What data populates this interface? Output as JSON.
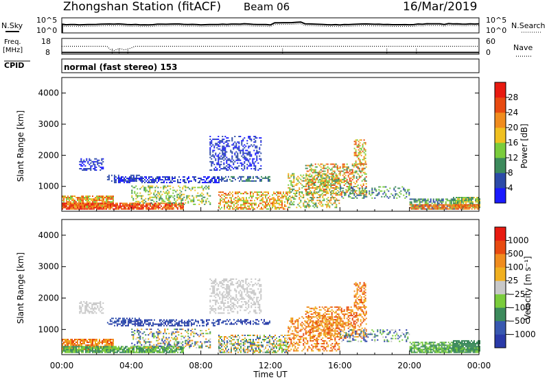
{
  "header": {
    "station": "Zhongshan Station (fitACF)",
    "beam": "Beam 06",
    "date": "16/Mar/2019"
  },
  "noise_panel": {
    "left_label": "N.Sky",
    "right_label": "N.Search",
    "left_ticks": [
      "10^5",
      "10^0"
    ],
    "right_ticks": [
      "10^5",
      "10^0"
    ]
  },
  "freq_panel": {
    "left_label_line1": "Freq.",
    "left_label_line2": "[MHz]",
    "right_label": "Nave",
    "left_ticks": [
      "18",
      "8"
    ],
    "right_ticks": [
      "60",
      "0"
    ]
  },
  "cpid": {
    "label": "CPID",
    "text": "normal (fast stereo) 153"
  },
  "colors": {
    "power": [
      "#1a1aff",
      "#2c4aa8",
      "#3c8a5c",
      "#7acc3c",
      "#f0c020",
      "#f08c1e",
      "#e84a10",
      "#e81a10"
    ],
    "velocity": [
      "#2a3aa8",
      "#3858b0",
      "#3c8a5c",
      "#7acc3c",
      "#c8c8c8",
      "#f0b020",
      "#f08c1e",
      "#e84a10",
      "#e81a10"
    ]
  },
  "chart_data": [
    {
      "type": "heatmap",
      "name": "power",
      "ylabel": "Slant Range [km]",
      "yticks": [
        "4000",
        "3000",
        "2000",
        "1000"
      ],
      "ylim": [
        200,
        4500
      ],
      "xlim": [
        "00:00",
        "24:00"
      ],
      "colorbar_label": "Power [dB]",
      "colorbar_ticks": [
        "28",
        "24",
        "20",
        "16",
        "12",
        "8",
        "4"
      ],
      "colorbar_range": [
        0,
        32
      ]
    },
    {
      "type": "heatmap",
      "name": "velocity",
      "ylabel": "Slant Range [km]",
      "yticks": [
        "4000",
        "3000",
        "2000",
        "1000"
      ],
      "ylim": [
        200,
        4500
      ],
      "xlim": [
        "00:00",
        "24:00"
      ],
      "xticks": [
        "00:00",
        "04:00",
        "08:00",
        "12:00",
        "16:00",
        "20:00",
        "00:00"
      ],
      "xlabel": "Time UT",
      "colorbar_label": "Velocity [m s⁻¹]",
      "colorbar_ticks": [
        "1000",
        "500",
        "100",
        "25",
        "−25",
        "−100",
        "−500",
        "−1000"
      ]
    }
  ]
}
